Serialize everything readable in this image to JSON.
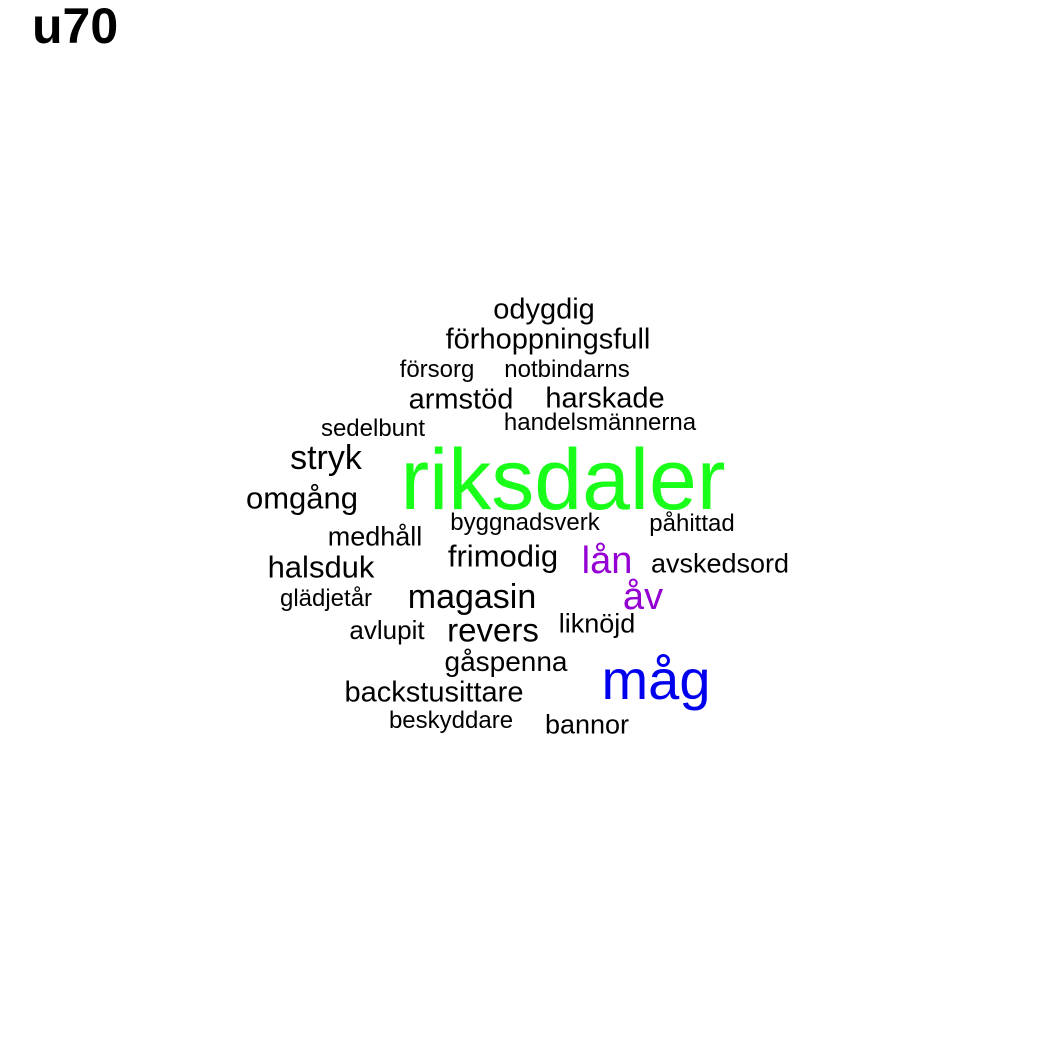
{
  "title": "u70",
  "colors": {
    "green": "#1aff1a",
    "blue": "#0000ee",
    "purple": "#9400d3",
    "black": "#000000"
  },
  "words": {
    "riksdaler": {
      "text": "riksdaler",
      "color": "#1aff1a"
    },
    "mag": {
      "text": "måg",
      "color": "#0000ee"
    },
    "lan": {
      "text": "lån",
      "color": "#9400d3"
    },
    "av": {
      "text": "åv",
      "color": "#9400d3"
    },
    "odygdig": {
      "text": "odygdig",
      "color": "#000000"
    },
    "forhoppningsfull": {
      "text": "förhoppningsfull",
      "color": "#000000"
    },
    "forsorg": {
      "text": "försorg",
      "color": "#000000"
    },
    "notbindarns": {
      "text": "notbindarns",
      "color": "#000000"
    },
    "armstod": {
      "text": "armstöd",
      "color": "#000000"
    },
    "harskade": {
      "text": "harskade",
      "color": "#000000"
    },
    "sedelbunt": {
      "text": "sedelbunt",
      "color": "#000000"
    },
    "handelsmannerna": {
      "text": "handelsmännerna",
      "color": "#000000"
    },
    "stryk": {
      "text": "stryk",
      "color": "#000000"
    },
    "omgang": {
      "text": "omgång",
      "color": "#000000"
    },
    "byggnadsverk": {
      "text": "byggnadsverk",
      "color": "#000000"
    },
    "pahittad": {
      "text": "påhittad",
      "color": "#000000"
    },
    "medhall": {
      "text": "medhåll",
      "color": "#000000"
    },
    "frimodig": {
      "text": "frimodig",
      "color": "#000000"
    },
    "avskedsord": {
      "text": "avskedsord",
      "color": "#000000"
    },
    "halsduk": {
      "text": "halsduk",
      "color": "#000000"
    },
    "gladjetar": {
      "text": "glädjetår",
      "color": "#000000"
    },
    "magasin": {
      "text": "magasin",
      "color": "#000000"
    },
    "avlupit": {
      "text": "avlupit",
      "color": "#000000"
    },
    "revers": {
      "text": "revers",
      "color": "#000000"
    },
    "liknojd": {
      "text": "liknöjd",
      "color": "#000000"
    },
    "gaspenna": {
      "text": "gåspenna",
      "color": "#000000"
    },
    "backstusittare": {
      "text": "backstusittare",
      "color": "#000000"
    },
    "beskyddare": {
      "text": "beskyddare",
      "color": "#000000"
    },
    "bannor": {
      "text": "bannor",
      "color": "#000000"
    }
  }
}
